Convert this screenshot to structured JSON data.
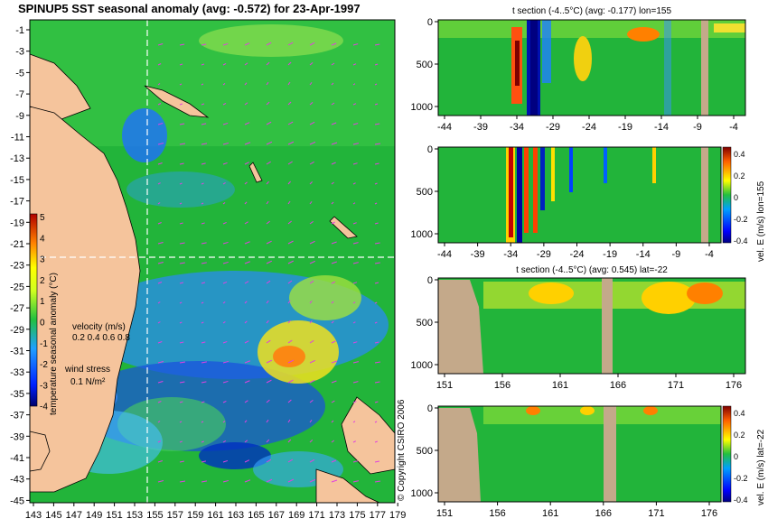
{
  "title": "SPINUP5 SST seasonal anomaly  (avg: -0.572) for 23-Apr-1997",
  "copyright": "© Copyright CSIRO 2006",
  "colors": {
    "ocean_green": "#22b43a",
    "land": "#f5c49c",
    "section_land": "#c4a98a",
    "crosshair": "#ffffff",
    "vector": "#e040e0"
  },
  "map": {
    "lat_ticks": [
      "-1",
      "-3",
      "-5",
      "-7",
      "-9",
      "-11",
      "-13",
      "-15",
      "-17",
      "-19",
      "-21",
      "-23",
      "-25",
      "-27",
      "-29",
      "-31",
      "-33",
      "-35",
      "-37",
      "-39",
      "-41",
      "-43",
      "-45"
    ],
    "lon_ticks": [
      "143",
      "145",
      "147",
      "149",
      "151",
      "153",
      "155",
      "157",
      "159",
      "161",
      "163",
      "165",
      "167",
      "169",
      "171",
      "173",
      "175",
      "177",
      "179"
    ],
    "crosshair": {
      "lon": 155,
      "lat": -22
    },
    "colorbar": {
      "label": "temperature seasonal anomaly (°C)",
      "ticks": [
        "5",
        "4",
        "3",
        "2",
        "1",
        "0",
        "-1",
        "-2",
        "-3",
        "-4"
      ],
      "range": [
        -4,
        5
      ]
    },
    "velocity_legend": {
      "title": "velocity (m/s)",
      "scale": "0.2 0.4 0.6 0.8"
    },
    "wind_legend": {
      "title": "wind stress",
      "scale": "0.1 N/m²"
    }
  },
  "panels": [
    {
      "title": "t section (-4..5°C) (avg: -0.177) lon=155",
      "x_ticks": [
        "-44",
        "-39",
        "-34",
        "-29",
        "-24",
        "-19",
        "-14",
        "-9",
        "-4"
      ],
      "y_ticks": [
        "0",
        "500",
        "1000"
      ],
      "colorbar": null
    },
    {
      "title": "",
      "x_ticks": [
        "-44",
        "-39",
        "-34",
        "-29",
        "-24",
        "-19",
        "-14",
        "-9",
        "-4"
      ],
      "y_ticks": [
        "0",
        "500",
        "1000"
      ],
      "colorbar": {
        "label": "vel. E (m/s) lon=155",
        "ticks": [
          "0.4",
          "0.2",
          "0",
          "-0.2",
          "-0.4"
        ]
      }
    },
    {
      "title": "t section (-4..5°C) (avg: 0.545) lat=-22",
      "x_ticks": [
        "151",
        "156",
        "161",
        "166",
        "171",
        "176"
      ],
      "y_ticks": [
        "0",
        "500",
        "1000"
      ],
      "colorbar": null
    },
    {
      "title": "",
      "x_ticks": [
        "151",
        "156",
        "161",
        "166",
        "171",
        "176"
      ],
      "y_ticks": [
        "0",
        "500",
        "1000"
      ],
      "colorbar": {
        "label": "vel. E (m/s) lat=-22",
        "ticks": [
          "0.4",
          "0.2",
          "0",
          "-0.2",
          "-0.4"
        ]
      }
    }
  ],
  "chart_data": [
    {
      "type": "heatmap",
      "title": "SPINUP5 SST seasonal anomaly  (avg: -0.572) for 23-Apr-1997",
      "xlim": [
        143,
        179
      ],
      "ylim": [
        -45,
        -1
      ],
      "colorbar_range": [
        -4,
        5
      ],
      "average": -0.572
    },
    {
      "type": "heatmap",
      "title": "t section (-4..5°C) (avg: -0.177) lon=155",
      "xlim": [
        -44,
        -1
      ],
      "ylim": [
        1050,
        0
      ],
      "colorbar_range": [
        -4,
        5
      ],
      "average": -0.177
    },
    {
      "type": "heatmap",
      "title": "",
      "xlim": [
        -44,
        -1
      ],
      "ylim": [
        1050,
        0
      ],
      "colorbar_range": [
        -0.4,
        0.4
      ],
      "label": "vel. E (m/s) lon=155"
    },
    {
      "type": "heatmap",
      "title": "t section (-4..5°C) (avg: 0.545) lat=-22",
      "xlim": [
        150,
        179
      ],
      "ylim": [
        1050,
        0
      ],
      "colorbar_range": [
        -4,
        5
      ],
      "average": 0.545
    },
    {
      "type": "heatmap",
      "title": "",
      "xlim": [
        150,
        179
      ],
      "ylim": [
        1050,
        0
      ],
      "colorbar_range": [
        -0.4,
        0.4
      ],
      "label": "vel. E (m/s) lat=-22"
    }
  ]
}
